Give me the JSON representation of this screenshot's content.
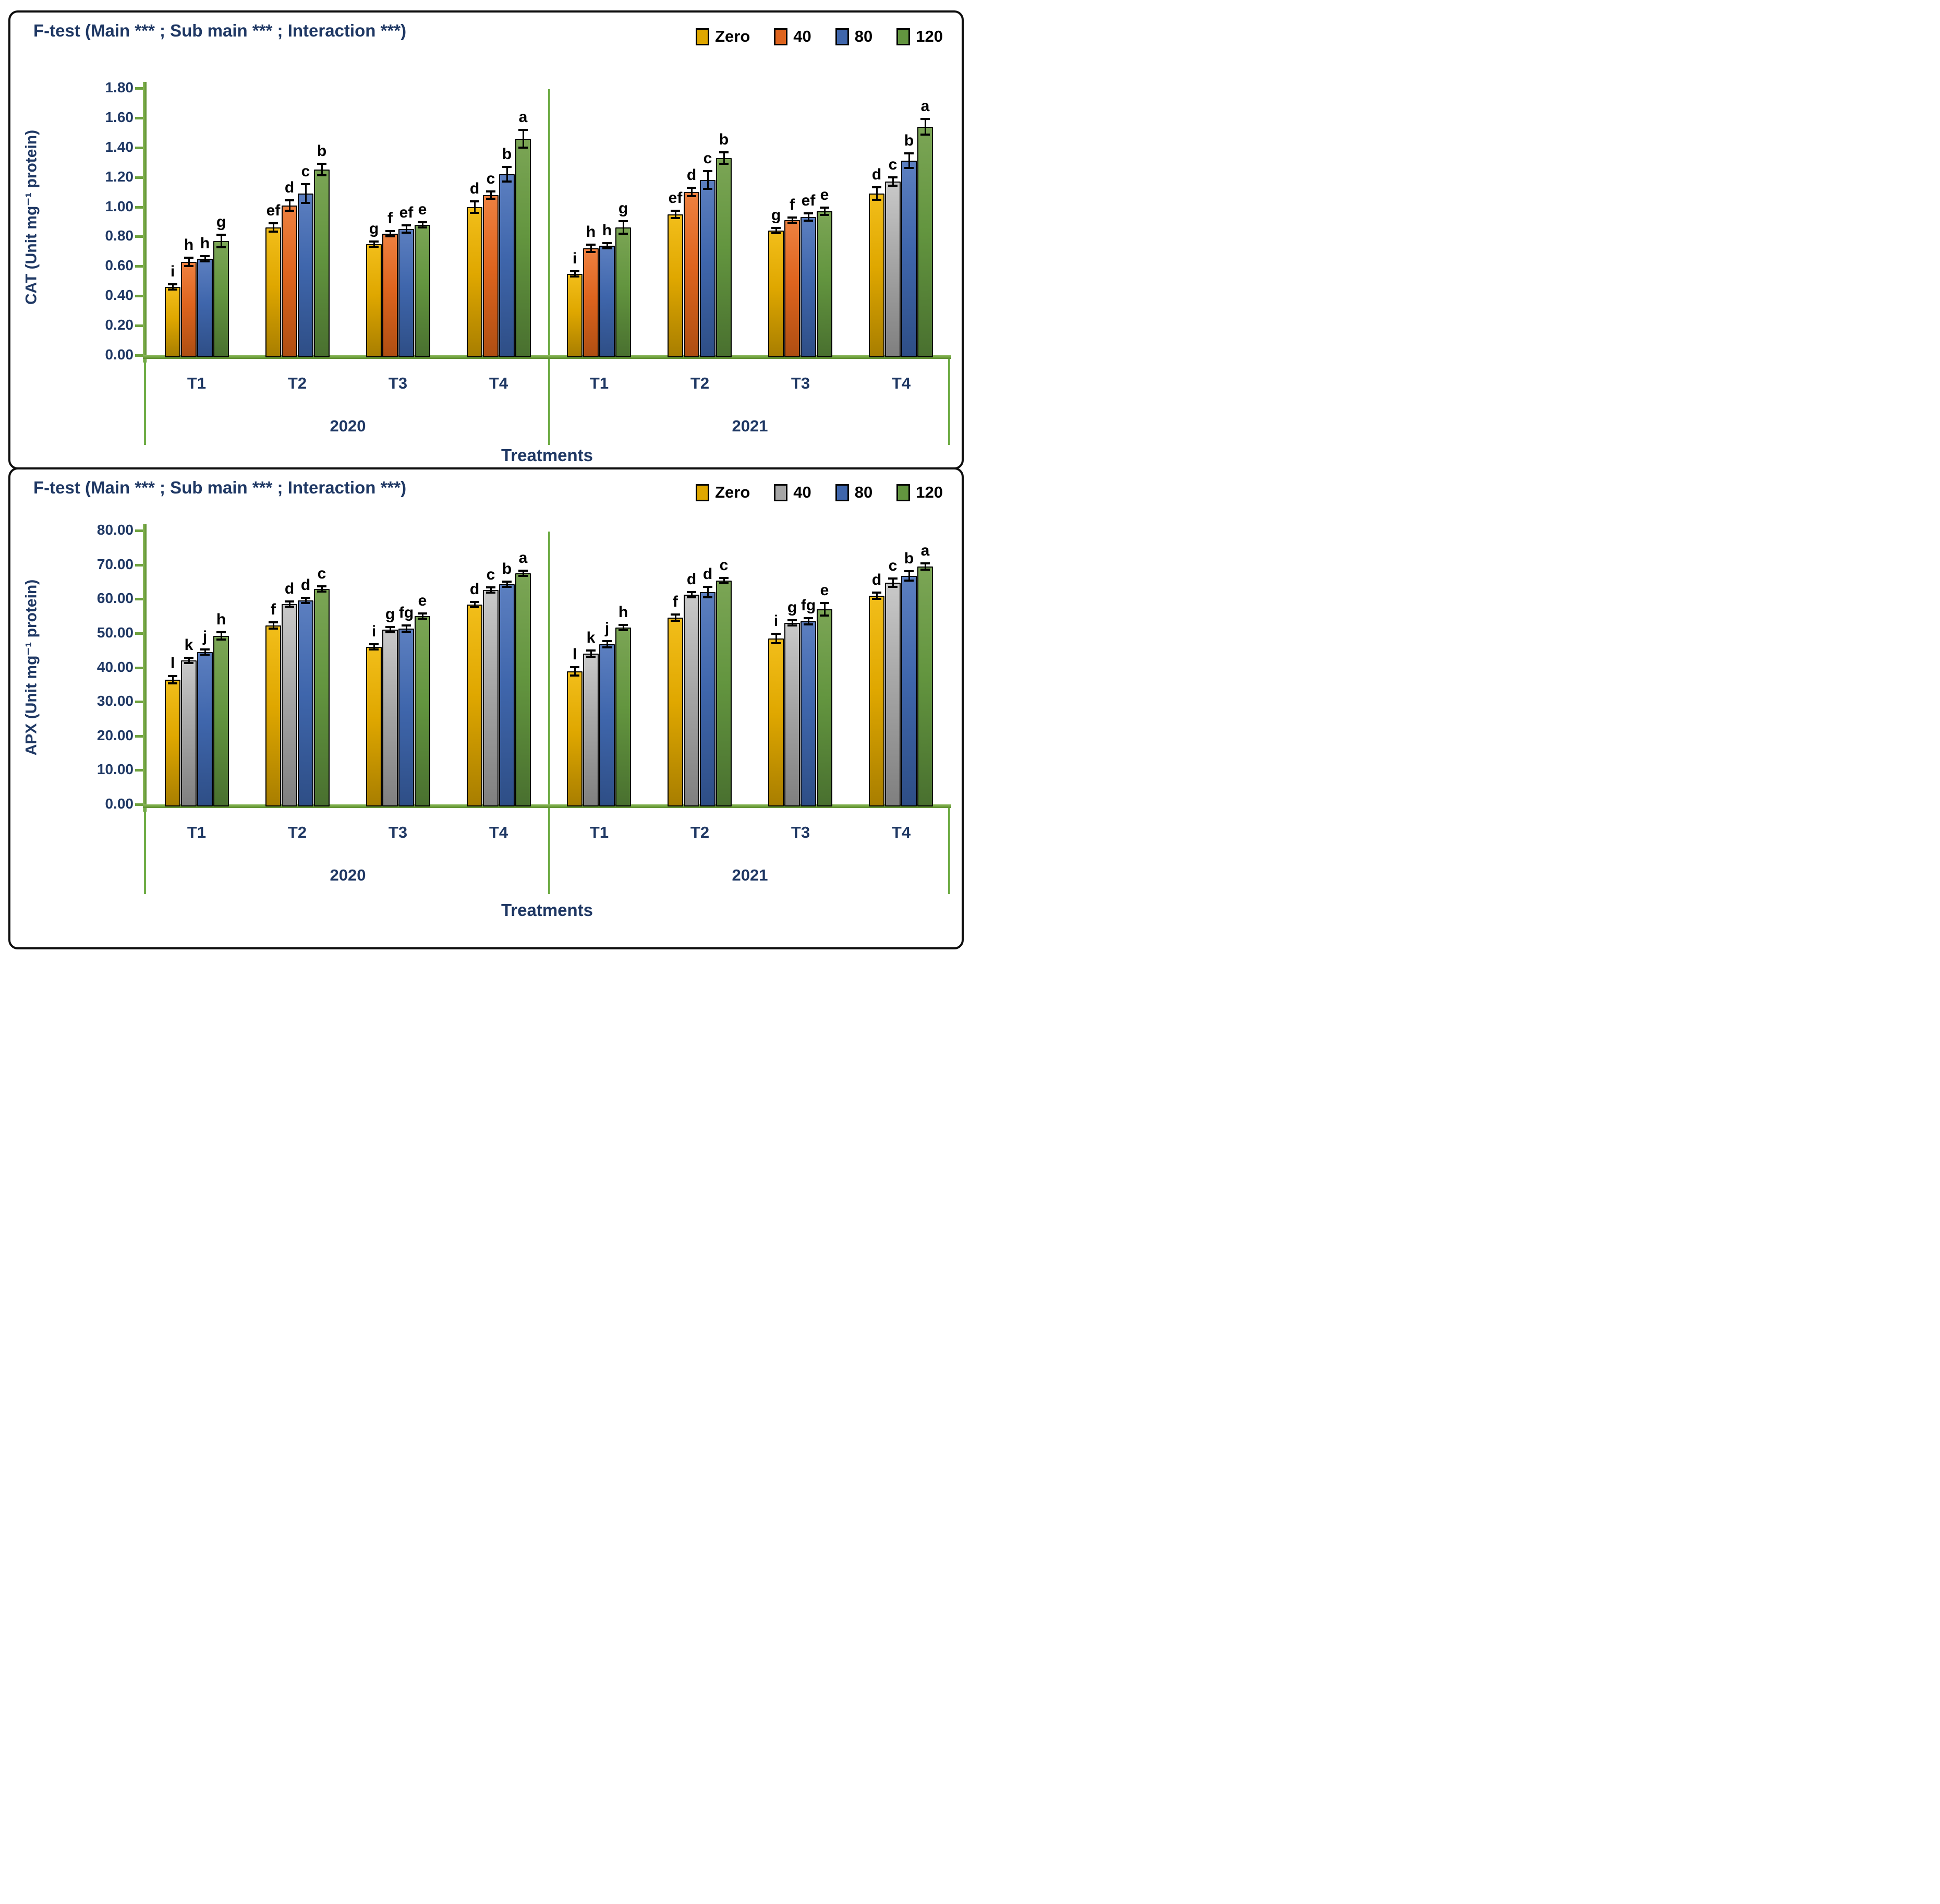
{
  "colors": {
    "axis_green": "#6FA23E",
    "divider_green": "#70AD47",
    "text_navy": "#1F3864",
    "letter_black": "#000000",
    "panel_border": "#0D0D0D",
    "background": "#FFFFFF"
  },
  "palettes": {
    "gold": [
      "#F2BE1A",
      "#DFA700",
      "#A87E00"
    ],
    "orange": [
      "#EE8140",
      "#DE641E",
      "#AE4E12"
    ],
    "blue": [
      "#5C7FC0",
      "#3F66AC",
      "#2E4E86"
    ],
    "green": [
      "#7BA555",
      "#63953F",
      "#49702F"
    ],
    "gray": [
      "#C9C9C9",
      "#A6A6A6",
      "#7F7F7F"
    ]
  },
  "chart_data": [
    {
      "type": "bar",
      "title": "F-test (Main *** ; Sub main *** ; Interaction ***)",
      "ylabel": "CAT (Unit mg⁻¹ protein)",
      "xlabel": "Treatments",
      "ylim": [
        0,
        1.8
      ],
      "ystep": 0.2,
      "tick_decimals": 2,
      "grid": false,
      "legend_position": "top-right",
      "legend": [
        {
          "label": "Zero",
          "palette": "gold"
        },
        {
          "label": "40",
          "palette": "orange"
        },
        {
          "label": "80",
          "palette": "blue"
        },
        {
          "label": "120",
          "palette": "green"
        }
      ],
      "sections": [
        {
          "year": "2020",
          "groups": [
            {
              "category": "T1",
              "bars": [
                {
                  "series": "Zero",
                  "value": 0.46,
                  "err": 0.01,
                  "letter": "i"
                },
                {
                  "series": "40",
                  "value": 0.63,
                  "err": 0.025,
                  "letter": "h"
                },
                {
                  "series": "80",
                  "value": 0.65,
                  "err": 0.015,
                  "letter": "h"
                },
                {
                  "series": "120",
                  "value": 0.77,
                  "err": 0.04,
                  "letter": "g"
                }
              ]
            },
            {
              "category": "T2",
              "bars": [
                {
                  "series": "Zero",
                  "value": 0.86,
                  "err": 0.025,
                  "letter": "ef"
                },
                {
                  "series": "40",
                  "value": 1.01,
                  "err": 0.03,
                  "letter": "d"
                },
                {
                  "series": "80",
                  "value": 1.09,
                  "err": 0.06,
                  "letter": "c"
                },
                {
                  "series": "120",
                  "value": 1.25,
                  "err": 0.035,
                  "letter": "b"
                }
              ]
            },
            {
              "category": "T3",
              "bars": [
                {
                  "series": "Zero",
                  "value": 0.75,
                  "err": 0.015,
                  "letter": "g"
                },
                {
                  "series": "40",
                  "value": 0.82,
                  "err": 0.01,
                  "letter": "f"
                },
                {
                  "series": "80",
                  "value": 0.85,
                  "err": 0.02,
                  "letter": "ef"
                },
                {
                  "series": "120",
                  "value": 0.88,
                  "err": 0.015,
                  "letter": "e"
                }
              ]
            },
            {
              "category": "T4",
              "bars": [
                {
                  "series": "Zero",
                  "value": 1.0,
                  "err": 0.035,
                  "letter": "d"
                },
                {
                  "series": "40",
                  "value": 1.08,
                  "err": 0.02,
                  "letter": "c"
                },
                {
                  "series": "80",
                  "value": 1.22,
                  "err": 0.045,
                  "letter": "b"
                },
                {
                  "series": "120",
                  "value": 1.46,
                  "err": 0.055,
                  "letter": "a"
                }
              ]
            }
          ]
        },
        {
          "year": "2021",
          "groups": [
            {
              "category": "T1",
              "bars": [
                {
                  "series": "Zero",
                  "value": 0.55,
                  "err": 0.01,
                  "letter": "i"
                },
                {
                  "series": "40",
                  "value": 0.72,
                  "err": 0.02,
                  "letter": "h"
                },
                {
                  "series": "80",
                  "value": 0.74,
                  "err": 0.015,
                  "letter": "h"
                },
                {
                  "series": "120",
                  "value": 0.86,
                  "err": 0.04,
                  "letter": "g"
                }
              ]
            },
            {
              "category": "T2",
              "bars": [
                {
                  "series": "Zero",
                  "value": 0.95,
                  "err": 0.02,
                  "letter": "ef"
                },
                {
                  "series": "40",
                  "value": 1.1,
                  "err": 0.025,
                  "letter": "d"
                },
                {
                  "series": "80",
                  "value": 1.18,
                  "err": 0.055,
                  "letter": "c"
                },
                {
                  "series": "120",
                  "value": 1.33,
                  "err": 0.035,
                  "letter": "b"
                }
              ]
            },
            {
              "category": "T3",
              "bars": [
                {
                  "series": "Zero",
                  "value": 0.84,
                  "err": 0.015,
                  "letter": "g"
                },
                {
                  "series": "40",
                  "value": 0.91,
                  "err": 0.012,
                  "letter": "f"
                },
                {
                  "series": "80",
                  "value": 0.93,
                  "err": 0.02,
                  "letter": "ef"
                },
                {
                  "series": "120",
                  "value": 0.97,
                  "err": 0.022,
                  "letter": "e"
                }
              ]
            },
            {
              "category": "T4",
              "bars": [
                {
                  "series": "Zero",
                  "value": 1.09,
                  "err": 0.04,
                  "letter": "d"
                },
                {
                  "series": "40",
                  "value": 1.17,
                  "err": 0.025,
                  "letter": "c",
                  "palette": "gray"
                },
                {
                  "series": "80",
                  "value": 1.31,
                  "err": 0.045,
                  "letter": "b"
                },
                {
                  "series": "120",
                  "value": 1.54,
                  "err": 0.05,
                  "letter": "a"
                }
              ]
            }
          ]
        }
      ]
    },
    {
      "type": "bar",
      "title": "F-test (Main *** ; Sub main *** ; Interaction ***)",
      "ylabel": "APX (Unit mg⁻¹ protein)",
      "xlabel": "Treatments",
      "ylim": [
        0,
        80
      ],
      "ystep": 10,
      "tick_decimals": 2,
      "grid": false,
      "legend_position": "top-right",
      "legend": [
        {
          "label": "Zero",
          "palette": "gold"
        },
        {
          "label": "40",
          "palette": "gray"
        },
        {
          "label": "80",
          "palette": "blue"
        },
        {
          "label": "120",
          "palette": "green"
        }
      ],
      "sections": [
        {
          "year": "2020",
          "groups": [
            {
              "category": "T1",
              "bars": [
                {
                  "series": "Zero",
                  "value": 36.4,
                  "err": 0.9,
                  "letter": "l"
                },
                {
                  "series": "40",
                  "value": 42.0,
                  "err": 0.5,
                  "letter": "k"
                },
                {
                  "series": "80",
                  "value": 44.5,
                  "err": 0.4,
                  "letter": "j"
                },
                {
                  "series": "120",
                  "value": 49.2,
                  "err": 0.9,
                  "letter": "h"
                }
              ]
            },
            {
              "category": "T2",
              "bars": [
                {
                  "series": "Zero",
                  "value": 52.3,
                  "err": 0.8,
                  "letter": "f"
                },
                {
                  "series": "40",
                  "value": 58.5,
                  "err": 0.4,
                  "letter": "d"
                },
                {
                  "series": "80",
                  "value": 59.6,
                  "err": 0.4,
                  "letter": "d"
                },
                {
                  "series": "120",
                  "value": 62.9,
                  "err": 0.4,
                  "letter": "c"
                }
              ]
            },
            {
              "category": "T3",
              "bars": [
                {
                  "series": "Zero",
                  "value": 46.0,
                  "err": 0.5,
                  "letter": "i"
                },
                {
                  "series": "40",
                  "value": 51.0,
                  "err": 0.5,
                  "letter": "g"
                },
                {
                  "series": "80",
                  "value": 51.3,
                  "err": 0.7,
                  "letter": "fg"
                },
                {
                  "series": "120",
                  "value": 55.0,
                  "err": 0.5,
                  "letter": "e"
                }
              ]
            },
            {
              "category": "T4",
              "bars": [
                {
                  "series": "Zero",
                  "value": 58.4,
                  "err": 0.4,
                  "letter": "d"
                },
                {
                  "series": "40",
                  "value": 62.7,
                  "err": 0.4,
                  "letter": "c"
                },
                {
                  "series": "80",
                  "value": 64.3,
                  "err": 0.5,
                  "letter": "b"
                },
                {
                  "series": "120",
                  "value": 67.5,
                  "err": 0.6,
                  "letter": "a"
                }
              ]
            }
          ]
        },
        {
          "year": "2021",
          "groups": [
            {
              "category": "T1",
              "bars": [
                {
                  "series": "Zero",
                  "value": 38.8,
                  "err": 1.0,
                  "letter": "l"
                },
                {
                  "series": "40",
                  "value": 44.0,
                  "err": 0.8,
                  "letter": "k"
                },
                {
                  "series": "80",
                  "value": 46.8,
                  "err": 0.8,
                  "letter": "j"
                },
                {
                  "series": "120",
                  "value": 51.6,
                  "err": 0.6,
                  "letter": "h"
                }
              ]
            },
            {
              "category": "T2",
              "bars": [
                {
                  "series": "Zero",
                  "value": 54.5,
                  "err": 0.8,
                  "letter": "f"
                },
                {
                  "series": "40",
                  "value": 61.3,
                  "err": 0.6,
                  "letter": "d"
                },
                {
                  "series": "80",
                  "value": 62.0,
                  "err": 1.3,
                  "letter": "d"
                },
                {
                  "series": "120",
                  "value": 65.3,
                  "err": 0.6,
                  "letter": "c"
                }
              ]
            },
            {
              "category": "T3",
              "bars": [
                {
                  "series": "Zero",
                  "value": 48.5,
                  "err": 1.2,
                  "letter": "i"
                },
                {
                  "series": "40",
                  "value": 53.0,
                  "err": 0.6,
                  "letter": "g"
                },
                {
                  "series": "80",
                  "value": 53.5,
                  "err": 0.8,
                  "letter": "fg"
                },
                {
                  "series": "120",
                  "value": 57.0,
                  "err": 1.6,
                  "letter": "e"
                }
              ]
            },
            {
              "category": "T4",
              "bars": [
                {
                  "series": "Zero",
                  "value": 61.0,
                  "err": 0.8,
                  "letter": "d"
                },
                {
                  "series": "40",
                  "value": 64.8,
                  "err": 1.0,
                  "letter": "c"
                },
                {
                  "series": "80",
                  "value": 66.8,
                  "err": 1.2,
                  "letter": "b"
                },
                {
                  "series": "120",
                  "value": 69.5,
                  "err": 0.8,
                  "letter": "a"
                }
              ]
            }
          ]
        }
      ]
    }
  ]
}
